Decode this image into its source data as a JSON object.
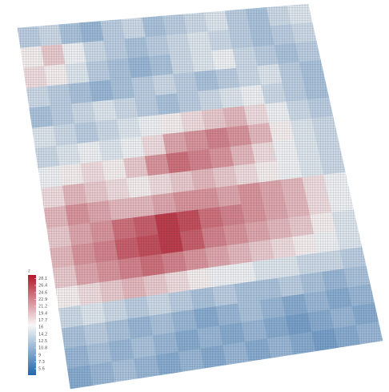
{
  "chart_data": {
    "type": "heatmap",
    "legend_title": "z",
    "zlim": [
      4,
      29
    ],
    "zticks": [
      28.1,
      26.4,
      24.6,
      22.9,
      21.2,
      19.4,
      17.7,
      16.0,
      14.2,
      12.5,
      10.8,
      9.0,
      7.3,
      5.6
    ],
    "colors": [
      "#2166ac",
      "#f7f7f7",
      "#b2182b"
    ],
    "values": [
      [
        13,
        14,
        12,
        11,
        13,
        14,
        12,
        13,
        14,
        15,
        13,
        12,
        14,
        15
      ],
      [
        17,
        19,
        16,
        14,
        13,
        12,
        13,
        14,
        15,
        14,
        13,
        12,
        13,
        14
      ],
      [
        18,
        17,
        15,
        13,
        12,
        11,
        12,
        14,
        15,
        16,
        14,
        13,
        12,
        13
      ],
      [
        14,
        13,
        12,
        11,
        12,
        13,
        14,
        13,
        12,
        13,
        14,
        15,
        13,
        12
      ],
      [
        12,
        13,
        14,
        15,
        14,
        13,
        12,
        13,
        14,
        15,
        16,
        14,
        13,
        12
      ],
      [
        15,
        14,
        13,
        14,
        15,
        16,
        17,
        18,
        19,
        20,
        18,
        16,
        14,
        13
      ],
      [
        14,
        15,
        16,
        15,
        16,
        18,
        21,
        22,
        23,
        22,
        20,
        17,
        15,
        14
      ],
      [
        16,
        17,
        18,
        17,
        19,
        22,
        24,
        23,
        22,
        20,
        18,
        16,
        15,
        14
      ],
      [
        18,
        20,
        19,
        18,
        17,
        18,
        19,
        20,
        19,
        18,
        17,
        16,
        15,
        14
      ],
      [
        20,
        22,
        21,
        20,
        20,
        21,
        22,
        22,
        21,
        22,
        21,
        20,
        18,
        16
      ],
      [
        19,
        21,
        22,
        24,
        25,
        27,
        26,
        24,
        23,
        22,
        21,
        20,
        18,
        16
      ],
      [
        20,
        22,
        23,
        25,
        26,
        27,
        25,
        23,
        22,
        21,
        20,
        19,
        17,
        15
      ],
      [
        19,
        21,
        22,
        23,
        24,
        23,
        22,
        21,
        20,
        19,
        18,
        17,
        16,
        15
      ],
      [
        17,
        18,
        19,
        20,
        19,
        18,
        17,
        16,
        16,
        15,
        15,
        14,
        14,
        13
      ],
      [
        14,
        15,
        14,
        13,
        14,
        13,
        12,
        13,
        12,
        12,
        13,
        12,
        11,
        12
      ],
      [
        12,
        13,
        12,
        11,
        12,
        11,
        10,
        11,
        12,
        11,
        10,
        11,
        10,
        11
      ],
      [
        11,
        12,
        11,
        12,
        11,
        10,
        11,
        10,
        11,
        10,
        9,
        10,
        11,
        10
      ],
      [
        10,
        11,
        12,
        11,
        10,
        11,
        10,
        11,
        10,
        11,
        10,
        9,
        10,
        11
      ]
    ]
  }
}
